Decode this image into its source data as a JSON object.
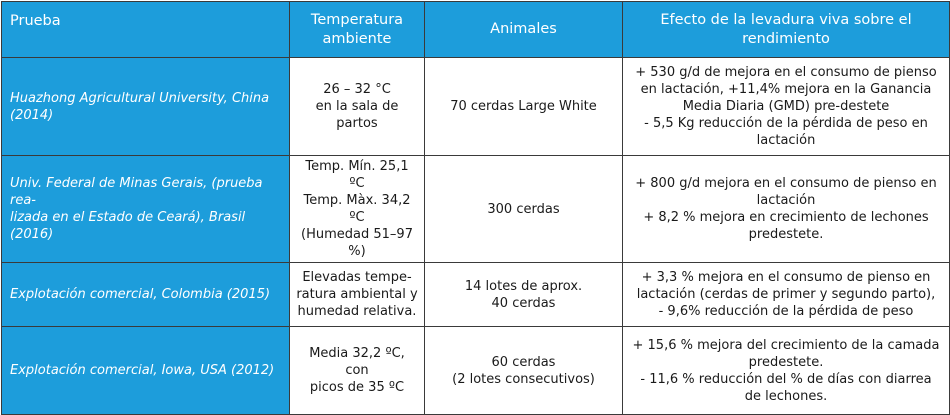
{
  "headers": {
    "trial": "Prueba",
    "temperature": "Temperatura\nambiente",
    "animals": "Animales",
    "effect": "Efecto de la levadura viva sobre el\nrendimiento"
  },
  "rows": [
    {
      "trial": "Huazhong Agricultural University, China\n(2014)",
      "temperature": "26 – 32 °C\nen la sala de partos",
      "animals": "70 cerdas Large White",
      "effect": "+ 530 g/d de mejora en el consumo de pienso\nen lactación, +11,4% mejora en la Ganancia\nMedia Diaria (GMD) pre-destete\n- 5,5 Kg reducción de la pérdida de peso en\nlactación"
    },
    {
      "trial": "Univ. Federal de Minas Gerais, (prueba rea-\nlizada en el Estado de Ceará), Brasil (2016)",
      "temperature": "Temp. Mín. 25,1 ºC\nTemp. Màx. 34,2 ºC\n(Humedad 51–97 %)",
      "animals": "300 cerdas",
      "effect": "+ 800 g/d mejora en el consumo de pienso en\nlactación\n+ 8,2 % mejora en crecimiento de lechones\npredestete."
    },
    {
      "trial": "Explotación comercial, Colombia (2015)",
      "temperature": "Elevadas tempe-\nratura ambiental y\nhumedad relativa.",
      "animals": "14 lotes de aprox.\n40 cerdas",
      "effect": "+ 3,3 % mejora en el consumo de pienso en\nlactación (cerdas de primer y segundo parto),\n- 9,6% reducción de la pérdida de peso"
    },
    {
      "trial": "Explotación comercial, Iowa, USA (2012)",
      "temperature": "Media 32,2 ºC, con\npicos de 35 ºC",
      "animals": "60 cerdas\n(2 lotes consecutivos)",
      "effect": "+ 15,6 % mejora del crecimiento de la camada\npredestete.\n- 11,6 % reducción del % de días con diarrea\nde lechones."
    }
  ]
}
